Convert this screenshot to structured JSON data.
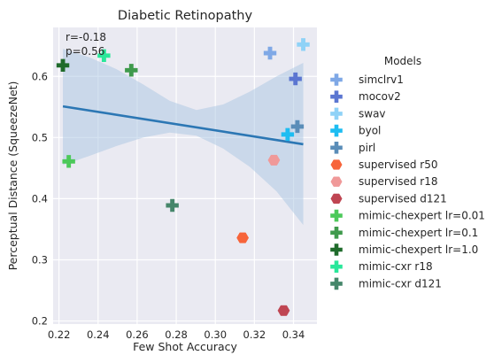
{
  "chart_data": {
    "type": "scatter",
    "title": "Diabetic Retinopathy",
    "xlabel": "Few Shot Accuracy",
    "ylabel": "Perceptual Distance (SqueezeNet)",
    "xlim": [
      0.217,
      0.352
    ],
    "ylim": [
      0.195,
      0.68
    ],
    "xticks": [
      "0.22",
      "0.24",
      "0.26",
      "0.28",
      "0.30",
      "0.32",
      "0.34"
    ],
    "yticks": [
      "0.2",
      "0.3",
      "0.4",
      "0.5",
      "0.6"
    ],
    "grid": true,
    "annotation": {
      "r": "r=-0.18",
      "p": "p=0.56"
    },
    "regression": {
      "x": [
        0.222,
        0.345
      ],
      "y": [
        0.551,
        0.489
      ],
      "band_upper": [
        0.645,
        0.631,
        0.612,
        0.587,
        0.56,
        0.545,
        0.554,
        0.575,
        0.6,
        0.622
      ],
      "band_lower": [
        0.455,
        0.47,
        0.486,
        0.5,
        0.508,
        0.503,
        0.482,
        0.452,
        0.412,
        0.357
      ],
      "color": "#2c77b4",
      "band_color": "#a9c5e2"
    },
    "legend_title": "Models",
    "legend_position": "right",
    "series": [
      {
        "name": "simclrv1",
        "marker": "plus",
        "color": "#7fa8e6",
        "x": 0.328,
        "y": 0.638
      },
      {
        "name": "mocov2",
        "marker": "plus",
        "color": "#5b76d1",
        "x": 0.341,
        "y": 0.596
      },
      {
        "name": "swav",
        "marker": "plus",
        "color": "#8fd2f7",
        "x": 0.345,
        "y": 0.652
      },
      {
        "name": "byol",
        "marker": "plus",
        "color": "#1dbdf2",
        "x": 0.337,
        "y": 0.505
      },
      {
        "name": "pirl",
        "marker": "plus",
        "color": "#5a8db8",
        "x": 0.342,
        "y": 0.518
      },
      {
        "name": "supervised r50",
        "marker": "hexagon",
        "color": "#f7643a",
        "x": 0.314,
        "y": 0.336
      },
      {
        "name": "supervised r18",
        "marker": "hexagon",
        "color": "#f09999",
        "x": 0.33,
        "y": 0.463
      },
      {
        "name": "supervised d121",
        "marker": "hexagon",
        "color": "#bf4552",
        "x": 0.335,
        "y": 0.217
      },
      {
        "name": "mimic-chexpert lr=0.01",
        "marker": "plus",
        "color": "#4cc95a",
        "x": 0.225,
        "y": 0.461
      },
      {
        "name": "mimic-chexpert lr=0.1",
        "marker": "plus",
        "color": "#3f9a4c",
        "x": 0.257,
        "y": 0.61
      },
      {
        "name": "mimic-chexpert lr=1.0",
        "marker": "plus",
        "color": "#1f6b2b",
        "x": 0.222,
        "y": 0.618
      },
      {
        "name": "mimic-cxr r18",
        "marker": "plus",
        "color": "#29e79a",
        "x": 0.243,
        "y": 0.634
      },
      {
        "name": "mimic-cxr d121",
        "marker": "plus",
        "color": "#45866a",
        "x": 0.278,
        "y": 0.389
      }
    ]
  }
}
